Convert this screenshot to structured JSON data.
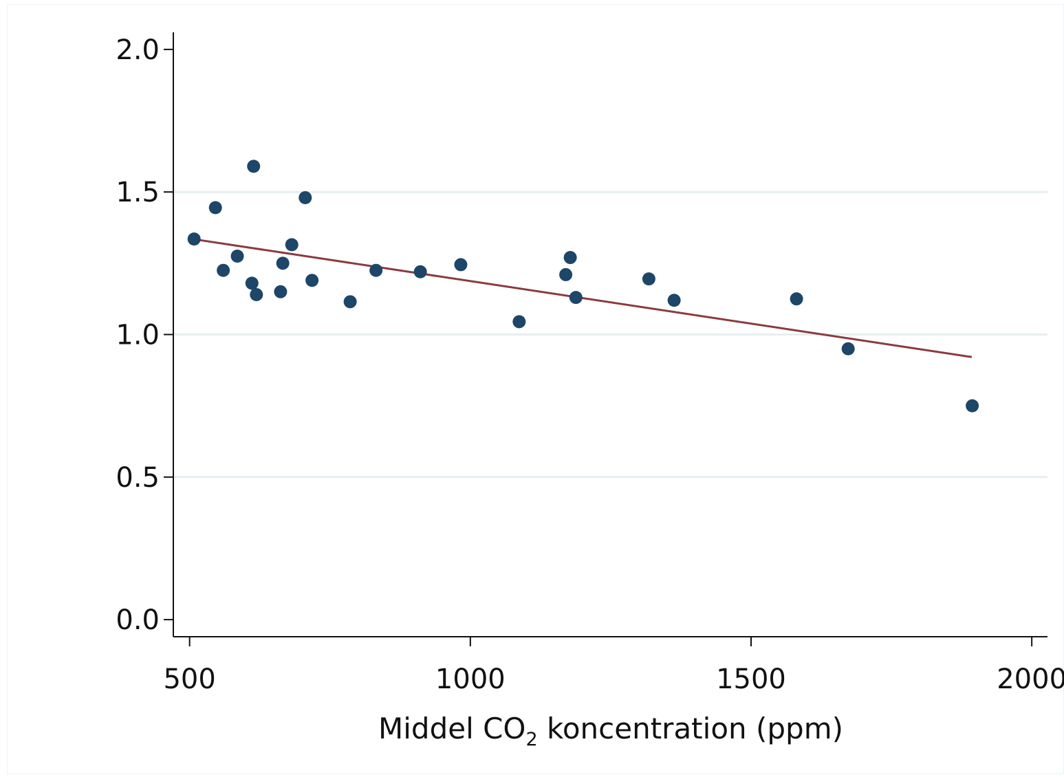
{
  "chart_data": {
    "type": "scatter",
    "title": "",
    "xlabel": {
      "before": "Middel CO",
      "subscript": "2",
      "after": " koncentration (ppm)"
    },
    "ylabel": "",
    "xlim": [
      471,
      2028
    ],
    "ylim": [
      -0.06,
      2.06
    ],
    "xticks": [
      500,
      1000,
      1500,
      2000
    ],
    "xtick_labels": [
      "500",
      "1000",
      "1500",
      "2000"
    ],
    "yticks": [
      0.0,
      0.5,
      1.0,
      1.5,
      2.0
    ],
    "ytick_labels": [
      "0.0",
      "0.5",
      "1.0",
      "1.5",
      "2.0"
    ],
    "grid": "horizontal",
    "series": [
      {
        "type": "scatter",
        "color": "#1d4668",
        "points": [
          [
            508,
            1.335
          ],
          [
            546,
            1.445
          ],
          [
            560,
            1.225
          ],
          [
            585,
            1.275
          ],
          [
            611,
            1.18
          ],
          [
            614,
            1.59
          ],
          [
            619,
            1.14
          ],
          [
            662,
            1.15
          ],
          [
            666,
            1.25
          ],
          [
            682,
            1.315
          ],
          [
            706,
            1.48
          ],
          [
            718,
            1.19
          ],
          [
            786,
            1.115
          ],
          [
            832,
            1.225
          ],
          [
            911,
            1.22
          ],
          [
            983,
            1.245
          ],
          [
            1087,
            1.045
          ],
          [
            1170,
            1.21
          ],
          [
            1178,
            1.27
          ],
          [
            1188,
            1.13
          ],
          [
            1318,
            1.195
          ],
          [
            1363,
            1.12
          ],
          [
            1581,
            1.125
          ],
          [
            1673,
            0.95
          ],
          [
            1894,
            0.75
          ]
        ]
      },
      {
        "type": "line",
        "color": "#8b3a3e",
        "points": [
          [
            512,
            1.333
          ],
          [
            1893,
            0.921
          ]
        ]
      }
    ]
  }
}
